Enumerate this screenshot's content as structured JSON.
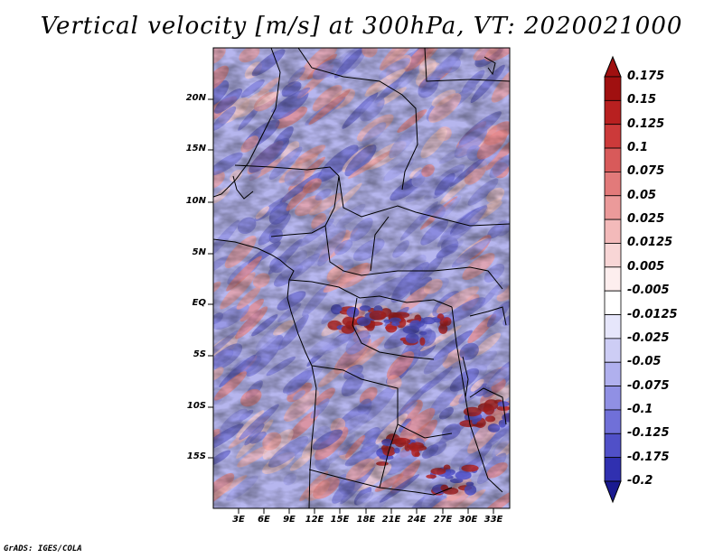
{
  "title": "Vertical velocity [m/s] at 300hPa, VT: 2020021000",
  "credit": "GrADS: IGES/COLA",
  "lat_labels": [
    "20N",
    "15N",
    "10N",
    "5N",
    "EQ",
    "5S",
    "10S",
    "15S"
  ],
  "lon_labels": [
    "3E",
    "6E",
    "9E",
    "12E",
    "15E",
    "18E",
    "21E",
    "24E",
    "27E",
    "30E",
    "33E"
  ],
  "colorbar": {
    "levels": [
      "0.175",
      "0.15",
      "0.125",
      "0.1",
      "0.075",
      "0.05",
      "0.025",
      "0.0125",
      "0.005",
      "-0.005",
      "-0.0125",
      "-0.025",
      "-0.05",
      "-0.075",
      "-0.1",
      "-0.125",
      "-0.175",
      "-0.2"
    ],
    "colors": [
      "#a01010",
      "#b82020",
      "#cc3a3a",
      "#d85a5a",
      "#e27a7a",
      "#eb9a9a",
      "#f3baba",
      "#f8d6d6",
      "#fdeeee",
      "#ffffff",
      "#e6e6fb",
      "#cdcdf5",
      "#b0b0ee",
      "#9090e4",
      "#7070d8",
      "#5050c8",
      "#3030b0",
      "#1a1a90"
    ]
  },
  "map": {
    "lat_range": [
      -20,
      25
    ],
    "lon_range": [
      0,
      35
    ],
    "field": "vertical velocity",
    "level": "300hPa",
    "valid_time": "2020021000"
  }
}
